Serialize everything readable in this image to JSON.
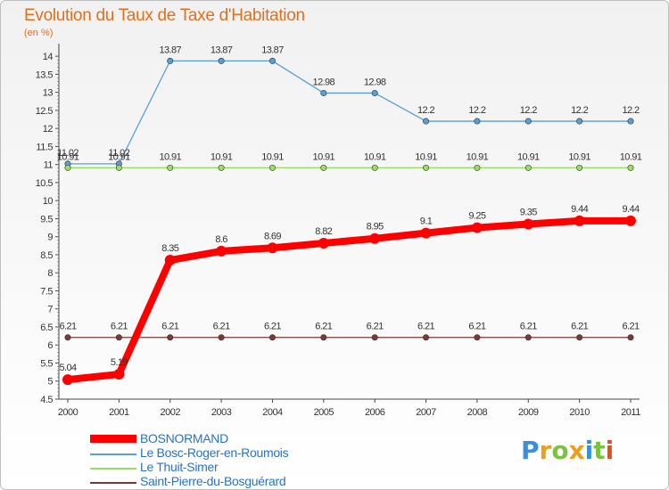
{
  "header": {
    "title": "Evolution du Taux de Taxe d'Habitation",
    "unit": "(en %)"
  },
  "logo": {
    "letters": [
      "P",
      "r",
      "o",
      "x",
      "i",
      "t",
      "i"
    ],
    "colors": [
      "#3a8fd8",
      "#e8a020",
      "#7cc242",
      "#e8a020",
      "#3a8fd8",
      "#7cc242",
      "#e05020"
    ]
  },
  "chart_data": {
    "type": "line",
    "title": "Evolution du Taux de Taxe d'Habitation",
    "ylabel": "(en %)",
    "xlabel": "",
    "ylim": [
      4.5,
      14.25
    ],
    "yticks": [
      "4.5",
      "5",
      "5.5",
      "6",
      "6.5",
      "7",
      "7.5",
      "8",
      "8.5",
      "9",
      "9.5",
      "10",
      "10.5",
      "11",
      "11.5",
      "12",
      "12.5",
      "13",
      "13.5",
      "14"
    ],
    "x": [
      "2000",
      "2001",
      "2002",
      "2003",
      "2004",
      "2005",
      "2006",
      "2007",
      "2008",
      "2009",
      "2010",
      "2011"
    ],
    "grid": false,
    "legend_position": "bottom-left",
    "series": [
      {
        "name": "Le Bosc-Roger-en-Roumois",
        "color": "#5a9fd4",
        "values": [
          11.02,
          11.02,
          13.87,
          13.87,
          13.87,
          12.98,
          12.98,
          12.2,
          12.2,
          12.2,
          12.2,
          12.2
        ],
        "labels": [
          "11.02",
          "11.02",
          "13.87",
          "13.87",
          "13.87",
          "12.98",
          "12.98",
          "12.2",
          "12.2",
          "12.2",
          "12.2",
          "12.2"
        ]
      },
      {
        "name": "Le Thuit-Simer",
        "color": "#99dd66",
        "values": [
          10.91,
          10.91,
          10.91,
          10.91,
          10.91,
          10.91,
          10.91,
          10.91,
          10.91,
          10.91,
          10.91,
          10.91
        ],
        "labels": [
          "10.91",
          "10.91",
          "10.91",
          "10.91",
          "10.91",
          "10.91",
          "10.91",
          "10.91",
          "10.91",
          "10.91",
          "10.91",
          "10.91"
        ]
      },
      {
        "name": "Saint-Pierre-du-Bosguérard",
        "color": "#7a3a3a",
        "values": [
          6.21,
          6.21,
          6.21,
          6.21,
          6.21,
          6.21,
          6.21,
          6.21,
          6.21,
          6.21,
          6.21,
          6.21
        ],
        "labels": [
          "6.21",
          "6.21",
          "6.21",
          "6.21",
          "6.21",
          "6.21",
          "6.21",
          "6.21",
          "6.21",
          "6.21",
          "6.21",
          "6.21"
        ]
      },
      {
        "name": "BOSNORMAND",
        "color": "#ff0000",
        "values": [
          5.04,
          5.19,
          8.35,
          8.6,
          8.69,
          8.82,
          8.95,
          9.1,
          9.25,
          9.35,
          9.44,
          9.44
        ],
        "labels": [
          "5.04",
          "5.19",
          "8.35",
          "8.6",
          "8.69",
          "8.82",
          "8.95",
          "9.1",
          "9.25",
          "9.35",
          "9.44",
          "9.44"
        ]
      }
    ],
    "legend": [
      "BOSNORMAND",
      "Le Bosc-Roger-en-Roumois",
      "Le Thuit-Simer",
      "Saint-Pierre-du-Bosguérard"
    ]
  }
}
